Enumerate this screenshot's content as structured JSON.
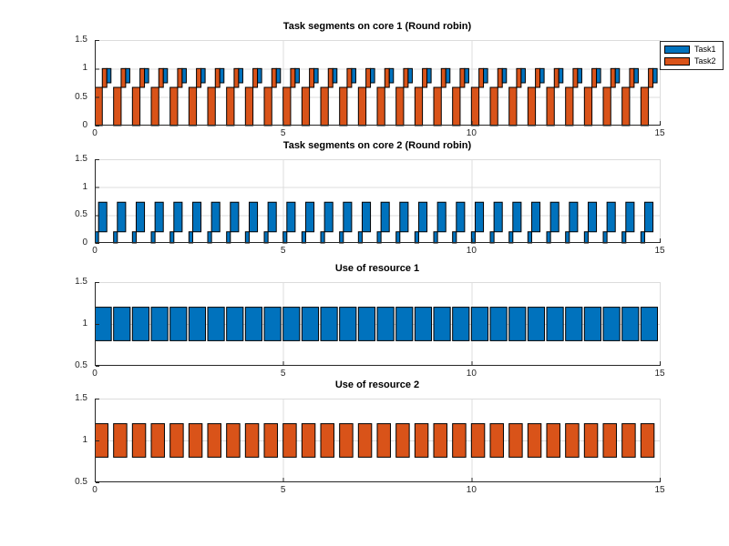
{
  "figure": {
    "background": "#ffffff"
  },
  "colors": {
    "task1": "#0072BD",
    "task2": "#D95319",
    "bar_edge": "#000000",
    "grid": "#dcdcdc",
    "axis": "#262626",
    "tick_label": "#262626",
    "title": "#000000",
    "legend_edge": "#262626",
    "legend_bg": "#ffffff"
  },
  "legend": {
    "position": "top-right",
    "items": [
      {
        "label": "Task1",
        "series": "task1"
      },
      {
        "label": "Task2",
        "series": "task2"
      }
    ]
  },
  "chart_data": [
    {
      "type": "bar",
      "title": "Task segments on core 1 (Round robin)",
      "xlim": [
        0,
        15
      ],
      "ylim": [
        0,
        1.5
      ],
      "xtick_values": [
        0,
        5,
        10,
        15
      ],
      "xtick_labels": [
        "0",
        "5",
        "10",
        "15"
      ],
      "ytick_values": [
        0,
        0.5,
        1,
        1.5
      ],
      "ytick_labels": [
        "0",
        "0.5",
        "1",
        "1.5"
      ],
      "grid_x": [
        5,
        10,
        15
      ],
      "grid_y": [
        0.5,
        1,
        1.5
      ],
      "period": 0.5,
      "cycles": 30,
      "pattern": [
        {
          "series": "task2",
          "t": [
            0,
            0.2
          ],
          "y": [
            0,
            0.67
          ]
        },
        {
          "series": "task2",
          "t": [
            0.2,
            0.32
          ],
          "y": [
            0.67,
            1.0
          ]
        },
        {
          "series": "task1",
          "t": [
            0.32,
            0.43
          ],
          "y": [
            0.75,
            1.0
          ]
        }
      ],
      "legend_visible": true
    },
    {
      "type": "bar",
      "title": "Task segments on core 2 (Round robin)",
      "xlim": [
        0,
        15
      ],
      "ylim": [
        0,
        1.5
      ],
      "xtick_values": [
        0,
        5,
        10,
        15
      ],
      "xtick_labels": [
        "0",
        "5",
        "10",
        "15"
      ],
      "ytick_values": [
        0,
        0.5,
        1,
        1.5
      ],
      "ytick_labels": [
        "0",
        "0.5",
        "1",
        "1.5"
      ],
      "grid_x": [
        5,
        10,
        15
      ],
      "grid_y": [
        0.5,
        1,
        1.5
      ],
      "period": 0.5,
      "cycles": 30,
      "pattern": [
        {
          "series": "task1",
          "t": [
            0,
            0.1
          ],
          "y": [
            0,
            0.2
          ]
        },
        {
          "series": "task1",
          "t": [
            0.1,
            0.32
          ],
          "y": [
            0.2,
            0.73
          ]
        }
      ],
      "legend_visible": false
    },
    {
      "type": "bar",
      "title": "Use of resource 1",
      "xlim": [
        0,
        15
      ],
      "ylim": [
        0.5,
        1.5
      ],
      "xtick_values": [
        0,
        5,
        10,
        15
      ],
      "xtick_labels": [
        "0",
        "5",
        "10",
        "15"
      ],
      "ytick_values": [
        0.5,
        1,
        1.5
      ],
      "ytick_labels": [
        "0.5",
        "1",
        "1.5"
      ],
      "grid_x": [
        5,
        10,
        15
      ],
      "grid_y": [
        1,
        1.5
      ],
      "period": 0.5,
      "cycles": 30,
      "pattern": [
        {
          "series": "task1",
          "t": [
            0,
            0.44
          ],
          "y": [
            0.8,
            1.2
          ]
        }
      ],
      "legend_visible": false
    },
    {
      "type": "bar",
      "title": "Use of resource 2",
      "xlim": [
        0,
        15
      ],
      "ylim": [
        0.5,
        1.5
      ],
      "xtick_values": [
        0,
        5,
        10,
        15
      ],
      "xtick_labels": [
        "0",
        "5",
        "10",
        "15"
      ],
      "ytick_values": [
        0.5,
        1,
        1.5
      ],
      "ytick_labels": [
        "0.5",
        "1",
        "1.5"
      ],
      "grid_x": [
        5,
        10,
        15
      ],
      "grid_y": [
        1,
        1.5
      ],
      "period": 0.5,
      "cycles": 30,
      "pattern": [
        {
          "series": "task2",
          "t": [
            0,
            0.35
          ],
          "y": [
            0.8,
            1.2
          ]
        }
      ],
      "legend_visible": false
    }
  ]
}
